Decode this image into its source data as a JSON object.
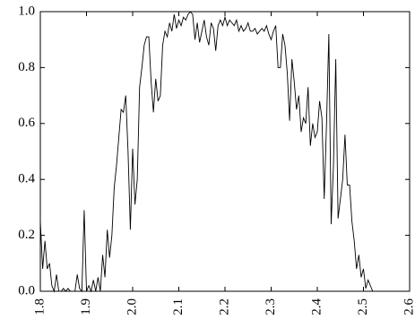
{
  "chart_data": {
    "type": "line",
    "color": "#000000",
    "grid": false,
    "x": [
      1.8,
      1.805,
      1.81,
      1.815,
      1.82,
      1.825,
      1.83,
      1.835,
      1.84,
      1.845,
      1.85,
      1.855,
      1.86,
      1.865,
      1.87,
      1.875,
      1.88,
      1.885,
      1.89,
      1.895,
      1.9,
      1.905,
      1.91,
      1.915,
      1.92,
      1.925,
      1.93,
      1.935,
      1.94,
      1.945,
      1.95,
      1.955,
      1.96,
      1.965,
      1.97,
      1.975,
      1.98,
      1.985,
      1.99,
      1.995,
      2.0,
      2.005,
      2.01,
      2.015,
      2.02,
      2.025,
      2.03,
      2.035,
      2.04,
      2.045,
      2.05,
      2.055,
      2.06,
      2.065,
      2.07,
      2.075,
      2.08,
      2.085,
      2.09,
      2.095,
      2.1,
      2.105,
      2.11,
      2.115,
      2.12,
      2.125,
      2.13,
      2.135,
      2.14,
      2.145,
      2.15,
      2.155,
      2.16,
      2.165,
      2.17,
      2.175,
      2.18,
      2.185,
      2.19,
      2.195,
      2.2,
      2.205,
      2.21,
      2.215,
      2.22,
      2.225,
      2.23,
      2.235,
      2.24,
      2.245,
      2.25,
      2.255,
      2.26,
      2.265,
      2.27,
      2.275,
      2.28,
      2.285,
      2.29,
      2.295,
      2.3,
      2.305,
      2.31,
      2.315,
      2.32,
      2.325,
      2.33,
      2.335,
      2.34,
      2.345,
      2.35,
      2.355,
      2.36,
      2.365,
      2.37,
      2.375,
      2.38,
      2.385,
      2.39,
      2.395,
      2.4,
      2.405,
      2.41,
      2.415,
      2.42,
      2.425,
      2.43,
      2.435,
      2.44,
      2.445,
      2.45,
      2.455,
      2.46,
      2.465,
      2.47,
      2.475,
      2.48,
      2.485,
      2.49,
      2.495,
      2.5,
      2.505,
      2.51,
      2.515,
      2.52,
      2.525
    ],
    "values": [
      0.25,
      0.08,
      0.18,
      0.08,
      0.1,
      0.02,
      0,
      0.06,
      0,
      0,
      0.01,
      0,
      0.01,
      0,
      0,
      0,
      0.06,
      0.01,
      0,
      0.29,
      0,
      0.02,
      0,
      0.04,
      0,
      0.05,
      0,
      0.13,
      0.05,
      0.22,
      0.12,
      0.2,
      0.37,
      0.45,
      0.55,
      0.65,
      0.64,
      0.7,
      0.5,
      0.22,
      0.51,
      0.31,
      0.4,
      0.73,
      0.8,
      0.88,
      0.91,
      0.91,
      0.75,
      0.64,
      0.76,
      0.68,
      0.7,
      0.88,
      0.93,
      0.91,
      0.96,
      0.93,
      0.99,
      0.94,
      0.97,
      0.95,
      0.98,
      0.97,
      0.99,
      1.0,
      0.99,
      0.9,
      0.96,
      0.89,
      0.93,
      0.97,
      0.91,
      0.88,
      0.96,
      0.94,
      0.86,
      0.95,
      0.97,
      0.95,
      0.98,
      0.95,
      0.97,
      0.96,
      0.95,
      0.97,
      0.93,
      0.95,
      0.93,
      0.94,
      0.96,
      0.93,
      0.93,
      0.94,
      0.92,
      0.93,
      0.94,
      0.93,
      0.95,
      0.92,
      0.9,
      0.93,
      0.95,
      0.8,
      0.8,
      0.92,
      0.88,
      0.78,
      0.61,
      0.83,
      0.75,
      0.65,
      0.7,
      0.57,
      0.62,
      0.6,
      0.73,
      0.52,
      0.6,
      0.55,
      0.57,
      0.68,
      0.62,
      0.33,
      0.6,
      0.92,
      0.24,
      0.45,
      0.83,
      0.26,
      0.33,
      0.4,
      0.56,
      0.38,
      0.38,
      0.25,
      0.18,
      0.08,
      0.13,
      0.05,
      0.08,
      0.01,
      0.04,
      0.02,
      0,
      0
    ],
    "xlim": [
      1.8,
      2.6
    ],
    "xticks": [
      1.8,
      1.9,
      {
        "value": 2.0,
        "label": "2.0"
      },
      2.1,
      2.2,
      2.3,
      2.4,
      2.5,
      2.6
    ],
    "ylim": [
      0,
      1
    ],
    "yticks": [
      {
        "value": 0,
        "label": "0.0"
      },
      0.2,
      0.4,
      0.6,
      0.8,
      {
        "value": 1,
        "label": "1.0"
      }
    ]
  }
}
